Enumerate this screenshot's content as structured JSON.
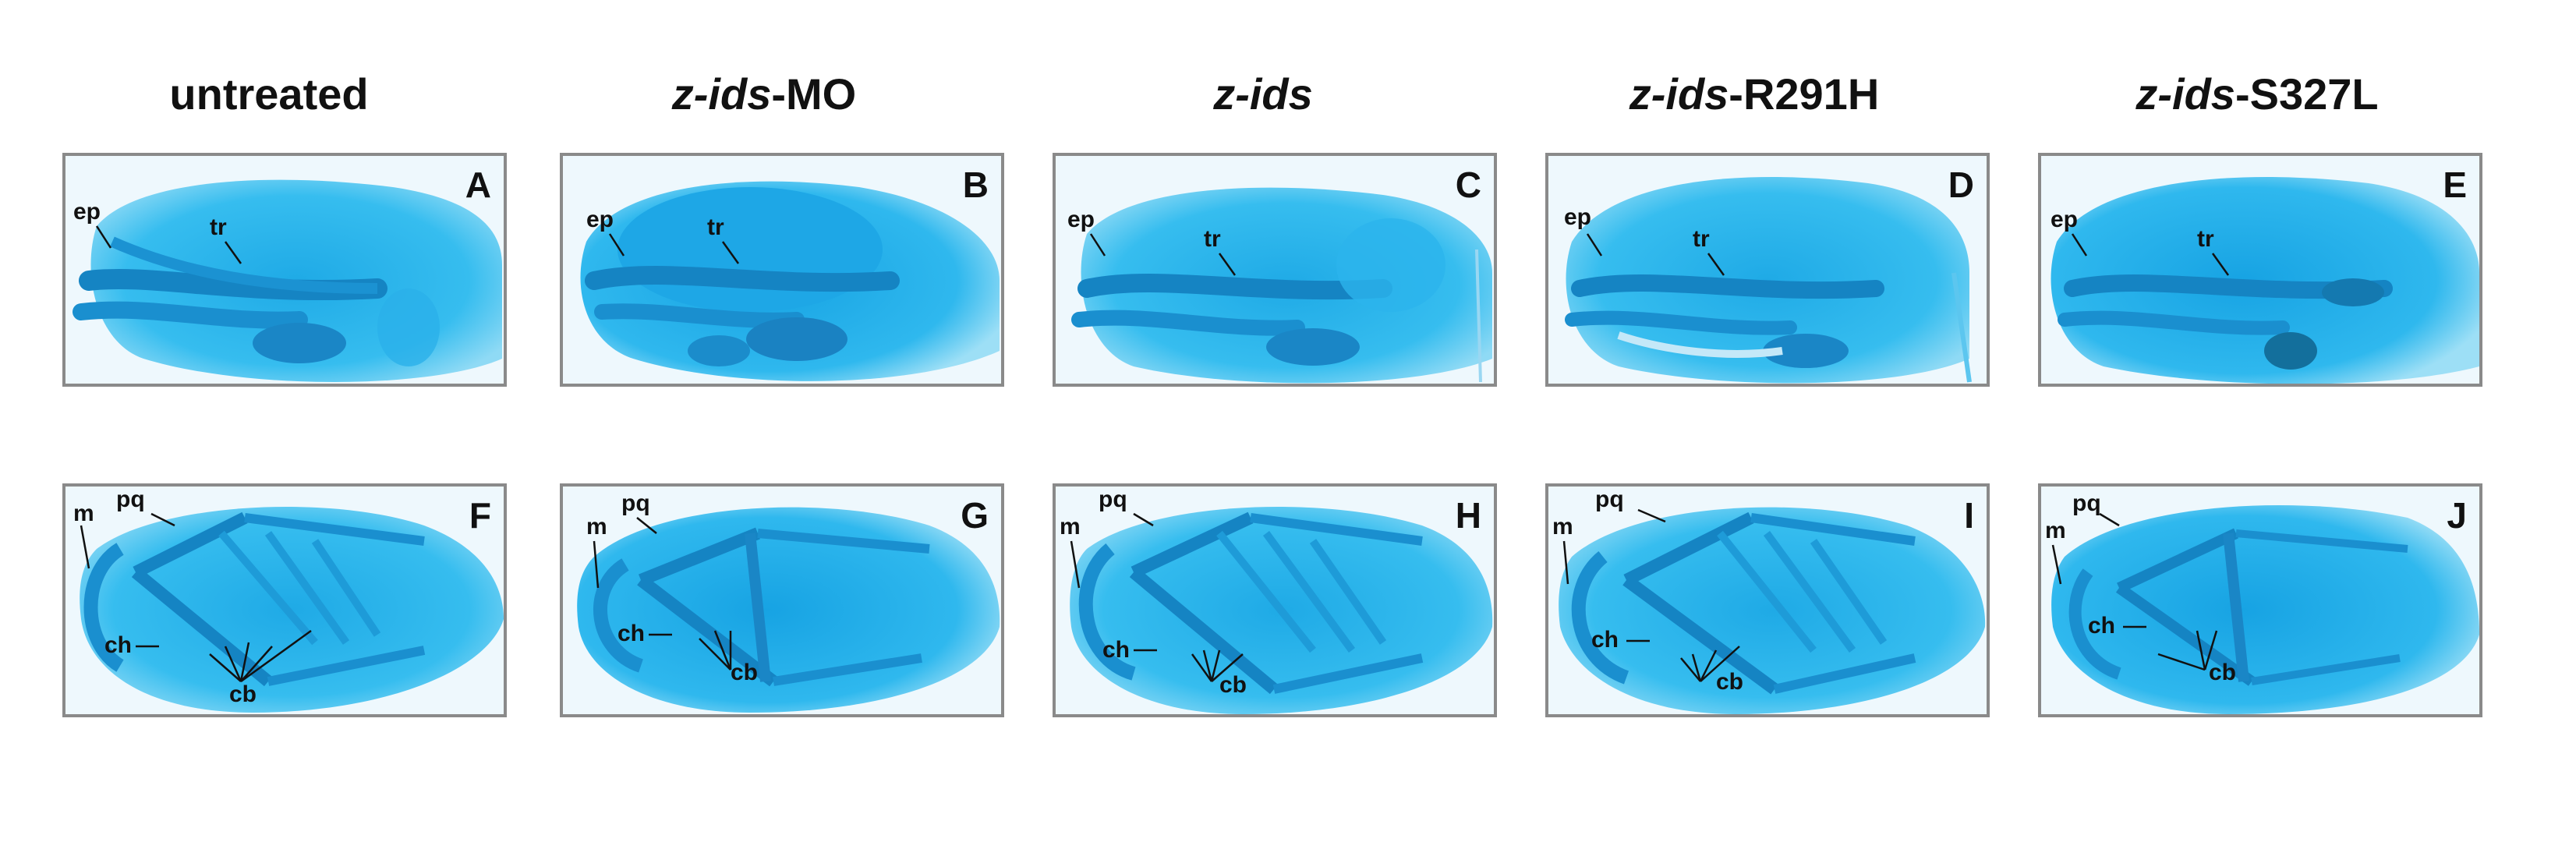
{
  "columns": [
    {
      "prefix": "z-ids",
      "suffix": ""
    },
    {
      "prefix": "z-ids",
      "suffix": "-MO"
    },
    {
      "prefix": "z-ids",
      "suffix": ""
    },
    {
      "prefix": "z-ids",
      "suffix": "-R291H"
    },
    {
      "prefix": "z-ids",
      "suffix": "-S327L"
    }
  ],
  "first_column_title": "untreated",
  "top_panels": [
    "A",
    "B",
    "C",
    "D",
    "E"
  ],
  "bottom_panels": [
    "F",
    "G",
    "H",
    "I",
    "J"
  ],
  "top_labels": {
    "ep": "ep",
    "tr": "tr"
  },
  "bottom_labels": {
    "m": "m",
    "pq": "pq",
    "ch": "ch",
    "cb": "cb"
  },
  "colors": {
    "stain_light": "#5ccaf0",
    "stain_mid": "#22aee8",
    "stain_dark": "#1583c2",
    "background": "#eef8fd"
  }
}
